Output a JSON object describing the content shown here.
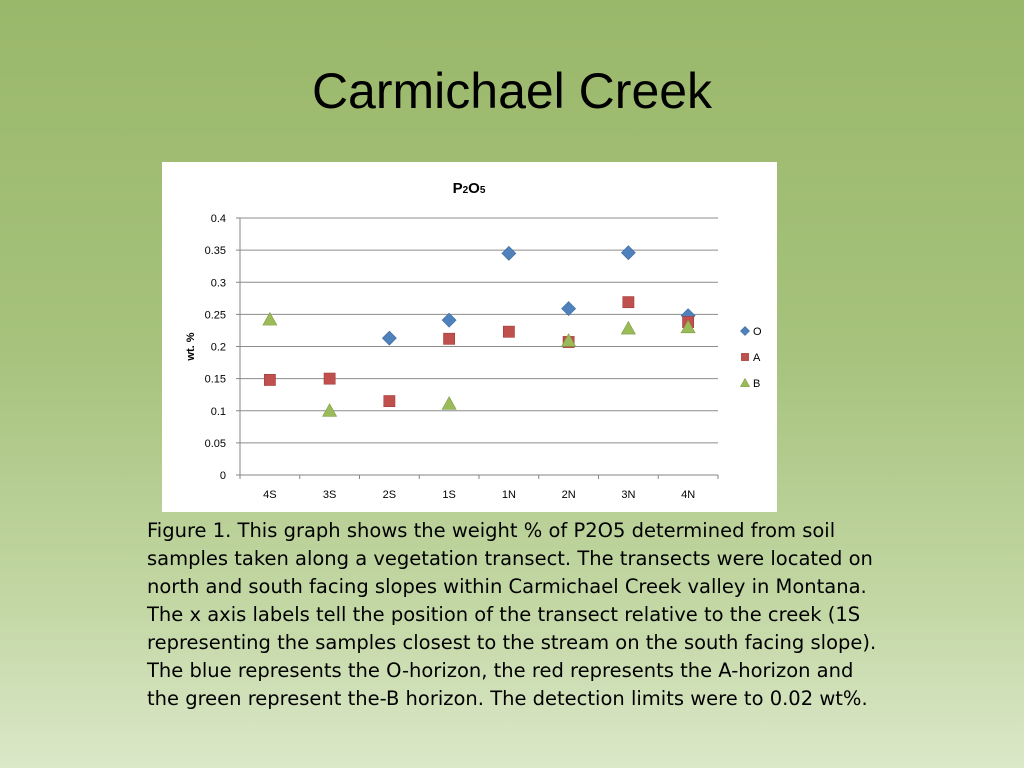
{
  "slide": {
    "title": "Carmichael Creek"
  },
  "chart_data": {
    "type": "scatter",
    "title": "P2O5",
    "title_parts": [
      {
        "text": "P",
        "sub": false
      },
      {
        "text": "2",
        "sub": true
      },
      {
        "text": "O",
        "sub": false
      },
      {
        "text": "5",
        "sub": true
      }
    ],
    "xlabel": "",
    "ylabel": "wt. %",
    "categories": [
      "4S",
      "3S",
      "2S",
      "1S",
      "1N",
      "2N",
      "3N",
      "4N"
    ],
    "ylim": [
      0,
      0.4
    ],
    "yticks": [
      "0",
      "0.05",
      "0.1",
      "0.15",
      "0.2",
      "0.25",
      "0.3",
      "0.35",
      "0.4"
    ],
    "ytick_values": [
      0,
      0.05,
      0.1,
      0.15,
      0.2,
      0.25,
      0.3,
      0.35,
      0.4
    ],
    "grid": true,
    "legend_position": "right",
    "series": [
      {
        "name": "O",
        "color": "#4f81bd",
        "marker": "diamond",
        "values": [
          null,
          null,
          0.213,
          0.241,
          0.345,
          0.259,
          0.346,
          0.248
        ]
      },
      {
        "name": "A",
        "color": "#c0504d",
        "marker": "square",
        "values": [
          0.148,
          0.15,
          0.115,
          0.212,
          0.223,
          0.207,
          0.269,
          0.238
        ]
      },
      {
        "name": "B",
        "color": "#9bbb59",
        "marker": "triangle",
        "values": [
          0.242,
          0.1,
          null,
          0.111,
          null,
          0.209,
          0.228,
          0.23
        ]
      }
    ]
  },
  "caption": {
    "lines": [
      "Figure 1. This graph shows the weight % of P2O5 determined from soil",
      "samples taken along a vegetation transect. The transects  were located on",
      "north and south facing slopes within Carmichael Creek valley in Montana.",
      "The x axis labels tell the position of the transect relative to the creek (1S",
      "representing the samples closest to the stream on the south facing slope).",
      "The blue represents the O-horizon, the red represents the A-horizon and",
      "the green represent the-B horizon. The detection limits were to 0.02 wt%."
    ]
  }
}
